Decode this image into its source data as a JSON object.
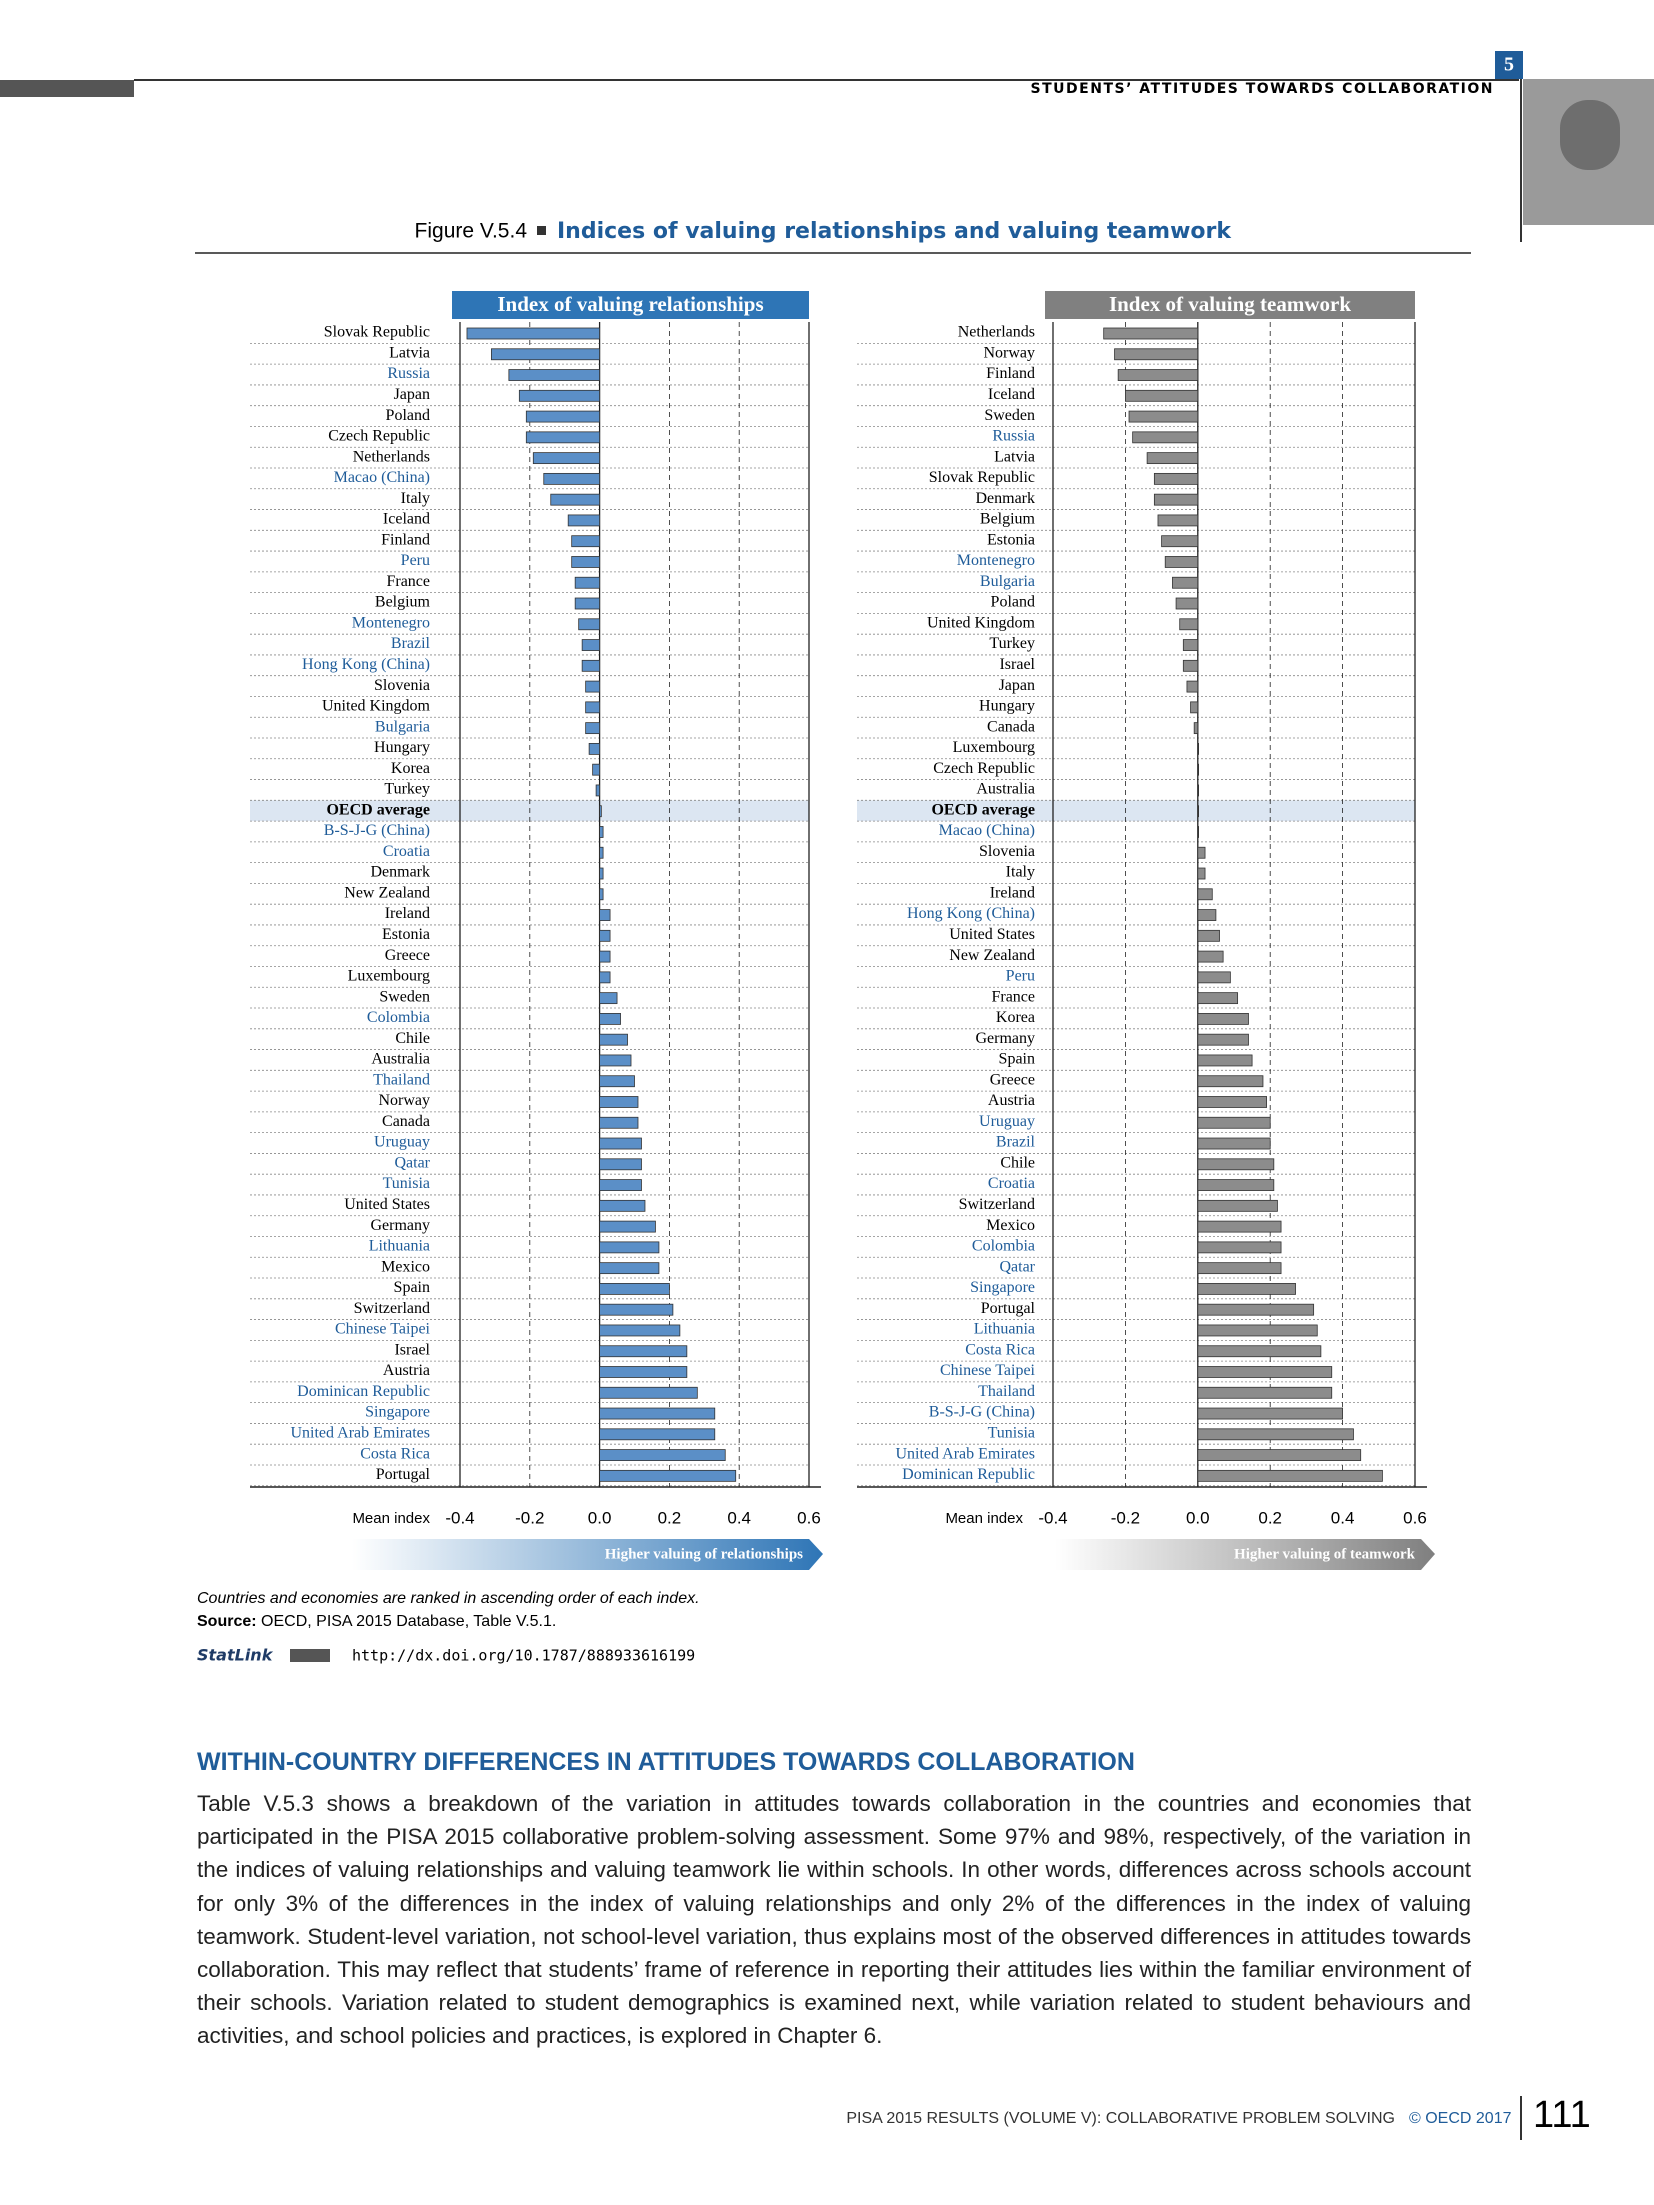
{
  "header": {
    "chapter": "5",
    "running_title": "STUDENTS’ ATTITUDES TOWARDS COLLABORATION"
  },
  "figure": {
    "number": "Figure V.5.4",
    "title": "Indices of valuing relationships and valuing teamwork"
  },
  "chart_data": [
    {
      "type": "barh",
      "title": "Index of valuing relationships",
      "title_color": "#2e75b6",
      "color": "#5b8fc7",
      "xlabel": "Mean index",
      "arrow_label": "Higher valuing of relationships",
      "arrow_color": "#2e75b6",
      "highlight_index": 23,
      "highlight_color": "#dce6f2",
      "categories": [
        "Slovak Republic",
        "Latvia",
        "Russia",
        "Japan",
        "Poland",
        "Czech Republic",
        "Netherlands",
        "Macao (China)",
        "Italy",
        "Iceland",
        "Finland",
        "Peru",
        "France",
        "Belgium",
        "Montenegro",
        "Brazil",
        "Hong Kong (China)",
        "Slovenia",
        "United Kingdom",
        "Bulgaria",
        "Hungary",
        "Korea",
        "Turkey",
        "OECD average",
        "B-S-J-G (China)",
        "Croatia",
        "Denmark",
        "New Zealand",
        "Ireland",
        "Estonia",
        "Greece",
        "Luxembourg",
        "Sweden",
        "Colombia",
        "Chile",
        "Australia",
        "Thailand",
        "Norway",
        "Canada",
        "Uruguay",
        "Qatar",
        "Tunisia",
        "United States",
        "Germany",
        "Lithuania",
        "Mexico",
        "Spain",
        "Switzerland",
        "Chinese Taipei",
        "Israel",
        "Austria",
        "Dominican Republic",
        "Singapore",
        "United Arab Emirates",
        "Costa Rica",
        "Portugal"
      ],
      "category_colors": [
        "#000",
        "#000",
        "#1f5c99",
        "#000",
        "#000",
        "#000",
        "#000",
        "#1f5c99",
        "#000",
        "#000",
        "#000",
        "#1f5c99",
        "#000",
        "#000",
        "#1f5c99",
        "#1f5c99",
        "#1f5c99",
        "#000",
        "#000",
        "#1f5c99",
        "#000",
        "#000",
        "#000",
        "#000",
        "#1f5c99",
        "#1f5c99",
        "#000",
        "#000",
        "#000",
        "#000",
        "#000",
        "#000",
        "#000",
        "#1f5c99",
        "#000",
        "#000",
        "#1f5c99",
        "#000",
        "#000",
        "#1f5c99",
        "#1f5c99",
        "#1f5c99",
        "#000",
        "#000",
        "#1f5c99",
        "#000",
        "#000",
        "#000",
        "#1f5c99",
        "#000",
        "#000",
        "#1f5c99",
        "#1f5c99",
        "#1f5c99",
        "#1f5c99",
        "#000"
      ],
      "values": [
        -0.38,
        -0.31,
        -0.26,
        -0.23,
        -0.21,
        -0.21,
        -0.19,
        -0.16,
        -0.14,
        -0.09,
        -0.08,
        -0.08,
        -0.07,
        -0.07,
        -0.06,
        -0.05,
        -0.05,
        -0.04,
        -0.04,
        -0.04,
        -0.03,
        -0.02,
        -0.01,
        0.005,
        0.01,
        0.01,
        0.01,
        0.01,
        0.03,
        0.03,
        0.03,
        0.03,
        0.05,
        0.06,
        0.08,
        0.09,
        0.1,
        0.11,
        0.11,
        0.12,
        0.12,
        0.12,
        0.13,
        0.16,
        0.17,
        0.17,
        0.2,
        0.21,
        0.23,
        0.25,
        0.25,
        0.28,
        0.33,
        0.33,
        0.36,
        0.39
      ],
      "xlim": [
        -0.4,
        0.6
      ],
      "xticks": [
        -0.4,
        -0.2,
        {
          "value": 0,
          "label": "0.0"
        },
        0.2,
        0.4,
        0.6
      ]
    },
    {
      "type": "barh",
      "title": "Index of valuing teamwork",
      "title_color": "#808080",
      "color": "#8c8c8c",
      "xlabel": "Mean index",
      "arrow_label": "Higher valuing of teamwork",
      "arrow_color": "#7f7f7f",
      "highlight_index": 23,
      "highlight_color": "#dce6f2",
      "categories": [
        "Netherlands",
        "Norway",
        "Finland",
        "Iceland",
        "Sweden",
        "Russia",
        "Latvia",
        "Slovak Republic",
        "Denmark",
        "Belgium",
        "Estonia",
        "Montenegro",
        "Bulgaria",
        "Poland",
        "United Kingdom",
        "Turkey",
        "Israel",
        "Japan",
        "Hungary",
        "Canada",
        "Luxembourg",
        "Czech Republic",
        "Australia",
        "OECD average",
        "Macao (China)",
        "Slovenia",
        "Italy",
        "Ireland",
        "Hong Kong (China)",
        "United States",
        "New Zealand",
        "Peru",
        "France",
        "Korea",
        "Germany",
        "Spain",
        "Greece",
        "Austria",
        "Uruguay",
        "Brazil",
        "Chile",
        "Croatia",
        "Switzerland",
        "Mexico",
        "Colombia",
        "Qatar",
        "Singapore",
        "Portugal",
        "Lithuania",
        "Costa Rica",
        "Chinese Taipei",
        "Thailand",
        "B-S-J-G (China)",
        "Tunisia",
        "United Arab Emirates",
        "Dominican Republic"
      ],
      "category_colors": [
        "#000",
        "#000",
        "#000",
        "#000",
        "#000",
        "#1f5c99",
        "#000",
        "#000",
        "#000",
        "#000",
        "#000",
        "#1f5c99",
        "#1f5c99",
        "#000",
        "#000",
        "#000",
        "#000",
        "#000",
        "#000",
        "#000",
        "#000",
        "#000",
        "#000",
        "#000",
        "#1f5c99",
        "#000",
        "#000",
        "#000",
        "#1f5c99",
        "#000",
        "#000",
        "#1f5c99",
        "#000",
        "#000",
        "#000",
        "#000",
        "#000",
        "#000",
        "#1f5c99",
        "#1f5c99",
        "#000",
        "#1f5c99",
        "#000",
        "#000",
        "#1f5c99",
        "#1f5c99",
        "#1f5c99",
        "#000",
        "#1f5c99",
        "#1f5c99",
        "#1f5c99",
        "#1f5c99",
        "#1f5c99",
        "#1f5c99",
        "#1f5c99",
        "#1f5c99"
      ],
      "values": [
        -0.26,
        -0.23,
        -0.22,
        -0.2,
        -0.19,
        -0.18,
        -0.14,
        -0.12,
        -0.12,
        -0.11,
        -0.1,
        -0.09,
        -0.07,
        -0.06,
        -0.05,
        -0.04,
        -0.04,
        -0.03,
        -0.02,
        -0.01,
        0,
        0,
        0,
        0.002,
        0.002,
        0.02,
        0.02,
        0.04,
        0.05,
        0.06,
        0.07,
        0.09,
        0.11,
        0.14,
        0.14,
        0.15,
        0.18,
        0.19,
        0.2,
        0.2,
        0.21,
        0.21,
        0.22,
        0.23,
        0.23,
        0.23,
        0.27,
        0.32,
        0.33,
        0.34,
        0.37,
        0.37,
        0.4,
        0.43,
        0.45,
        0.51
      ],
      "xlim": [
        -0.4,
        0.6
      ],
      "xticks": [
        -0.4,
        -0.2,
        {
          "value": 0,
          "label": "0.0"
        },
        0.2,
        0.4,
        0.6
      ]
    }
  ],
  "notes": {
    "ranking": "Countries and economies are ranked in ascending order of each index.",
    "source_label": "Source:",
    "source": " OECD, PISA 2015 Database, Table V.5.1.",
    "statlink_label": "StatLink",
    "statlink_url": "http://dx.doi.org/10.1787/888933616199"
  },
  "section": {
    "heading": "WITHIN-COUNTRY DIFFERENCES IN ATTITUDES TOWARDS COLLABORATION",
    "paragraph": "Table V.5.3 shows a breakdown of the variation in attitudes towards collaboration in the countries and economies that participated in the PISA 2015 collaborative problem-solving assessment. Some 97% and 98%, respectively, of the variation in the indices of valuing relationships and valuing teamwork lie within schools. In other words, differences across schools account for only 3% of the differences in the index of valuing relationships and only 2% of the differences in the index of valuing teamwork. Student-level variation, not school-level variation, thus explains most of the observed differences in attitudes towards collaboration. This may reflect that students’ frame of reference in reporting their attitudes lies within the familiar environment of their schools. Variation related to student demographics is examined next, while variation related to student behaviours and activities, and school policies and practices, is explored in Chapter 6."
  },
  "footer": {
    "publication": "PISA 2015 RESULTS (VOLUME V): COLLABORATIVE PROBLEM SOLVING",
    "copyright": "© OECD 2017",
    "page_number": "111"
  }
}
